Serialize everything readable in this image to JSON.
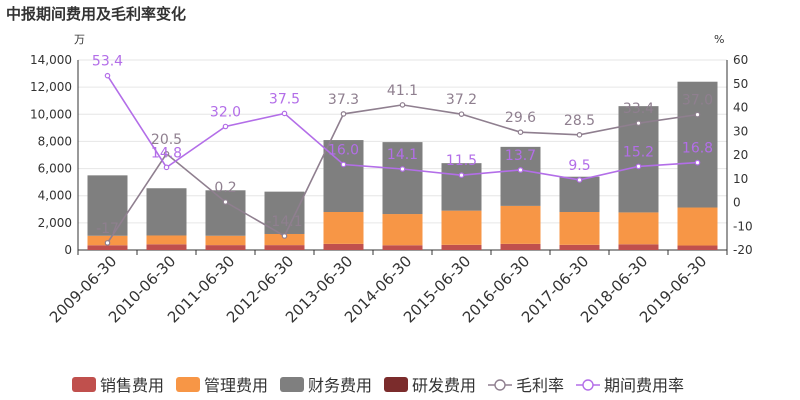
{
  "header": {
    "title": "中报期间费用及毛利率变化"
  },
  "chart_data": {
    "type": "bar",
    "title": "中报期间费用及毛利率变化",
    "y_left_unit": "万",
    "y_right_unit": "%",
    "ylim_left": [
      0,
      14000
    ],
    "ylim_right": [
      -20,
      60
    ],
    "yticks_left": [
      "0",
      "2,000",
      "4,000",
      "6,000",
      "8,000",
      "10,000",
      "12,000",
      "14,000"
    ],
    "yticks_right": [
      "-20",
      "-10",
      "0",
      "10",
      "20",
      "30",
      "40",
      "50",
      "60"
    ],
    "categories": [
      "2009-06-30",
      "2010-06-30",
      "2011-06-30",
      "2012-06-30",
      "2013-06-30",
      "2014-06-30",
      "2015-06-30",
      "2016-06-30",
      "2017-06-30",
      "2018-06-30",
      "2019-06-30"
    ],
    "series": [
      {
        "name": "销售费用",
        "kind": "stacked-bar",
        "axis": "left",
        "color": "#c0504d",
        "values": [
          350,
          420,
          360,
          360,
          450,
          350,
          380,
          450,
          380,
          420,
          330
        ]
      },
      {
        "name": "管理费用",
        "kind": "stacked-bar",
        "axis": "left",
        "color": "#f79646",
        "values": [
          700,
          650,
          690,
          820,
          2350,
          2300,
          2520,
          2800,
          2420,
          2350,
          2800
        ]
      },
      {
        "name": "财务费用",
        "kind": "stacked-bar",
        "axis": "left",
        "color": "#7f7f7f",
        "values": [
          4450,
          3480,
          3350,
          3120,
          5300,
          5300,
          3500,
          4350,
          2600,
          7830,
          9270
        ]
      },
      {
        "name": "研发费用",
        "kind": "stacked-bar",
        "axis": "left",
        "color": "#7b2c2c",
        "values": [
          0,
          0,
          0,
          0,
          0,
          0,
          0,
          0,
          0,
          0,
          0
        ]
      },
      {
        "name": "毛利率",
        "kind": "line",
        "axis": "right",
        "color": "#8f7f8f",
        "values": [
          -17.0,
          20.5,
          0.2,
          -14.1,
          37.3,
          41.1,
          37.2,
          29.6,
          28.5,
          33.4,
          37.0
        ],
        "labels": [
          "-17",
          "20.5",
          "0.2",
          "-14.1",
          "37.3",
          "41.1",
          "37.2",
          "29.6",
          "28.5",
          "33.4",
          "37.0"
        ]
      },
      {
        "name": "期间费用率",
        "kind": "line",
        "axis": "right",
        "color": "#b36ee8",
        "values": [
          53.4,
          14.8,
          32.0,
          37.5,
          16.0,
          14.1,
          11.5,
          13.7,
          9.5,
          15.2,
          16.8
        ],
        "labels": [
          "53.4",
          "14.8",
          "32.0",
          "37.5",
          "16.0",
          "14.1",
          "11.5",
          "13.7",
          "9.5",
          "15.2",
          "16.8"
        ]
      }
    ],
    "legend": {
      "position": "bottom"
    }
  }
}
